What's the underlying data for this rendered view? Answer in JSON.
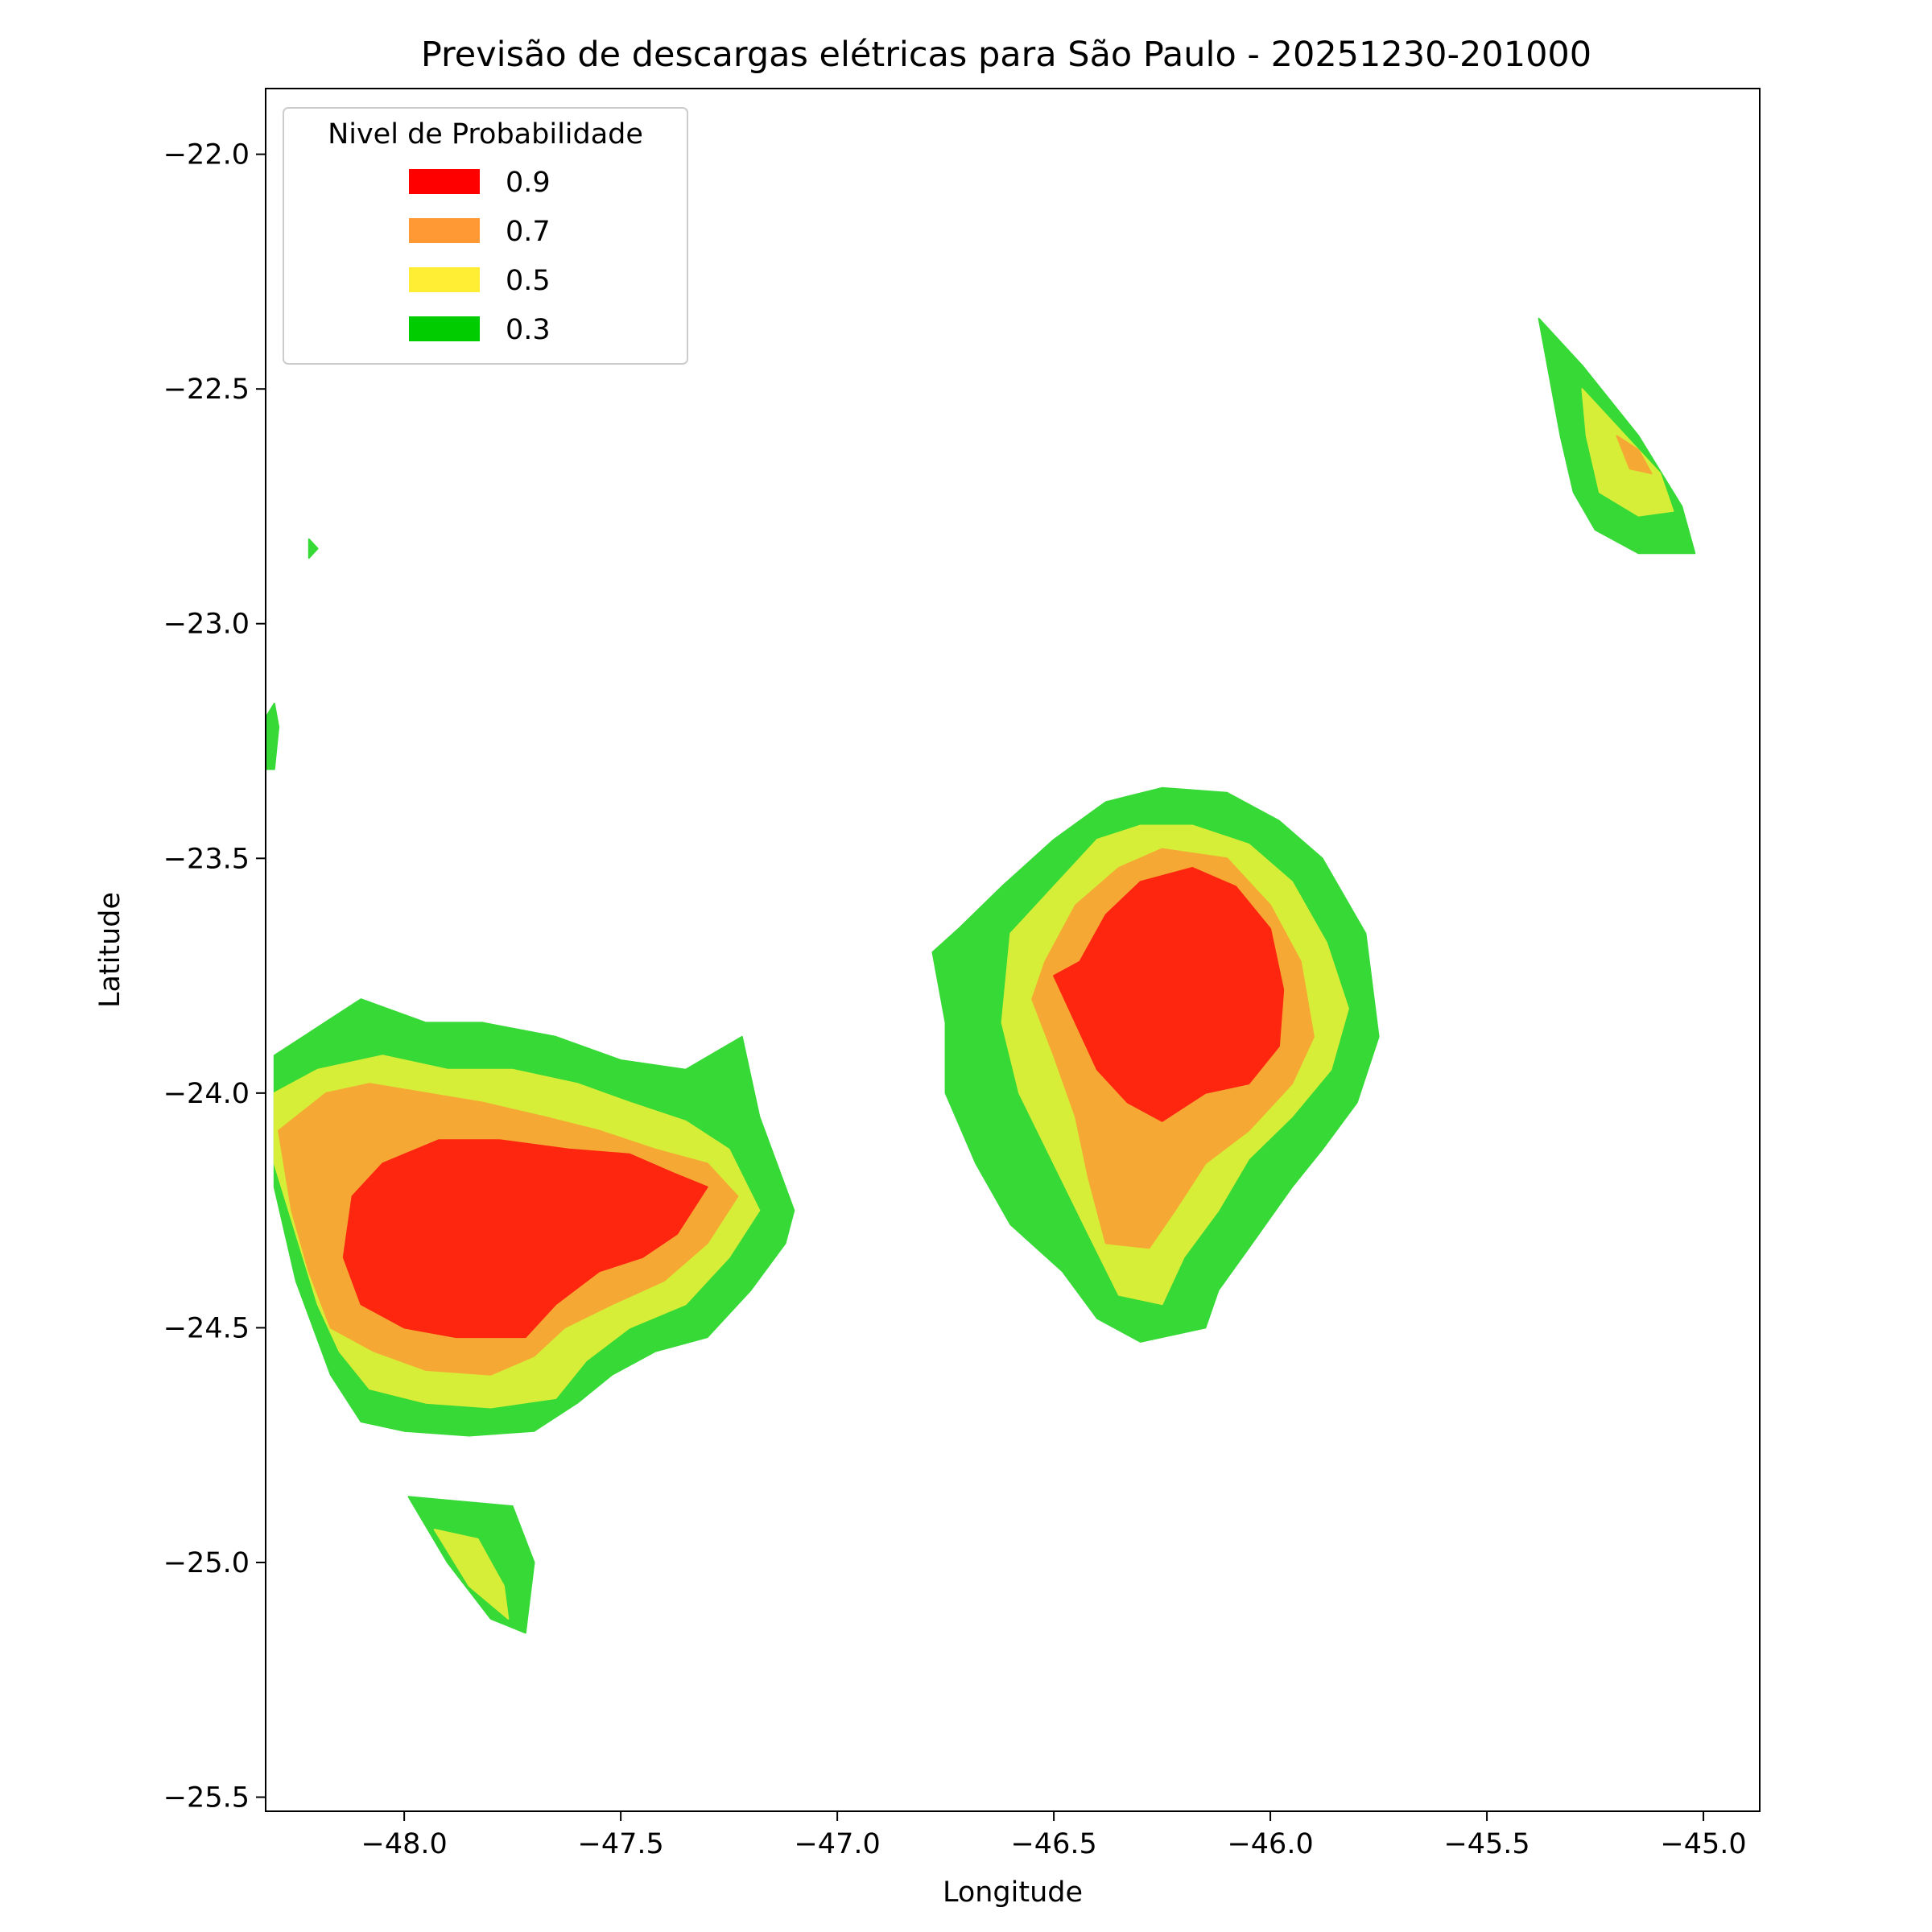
{
  "chart_data": {
    "type": "contourf",
    "title": "Previsão de descargas elétricas para São Paulo - 20251230-201000",
    "xlabel": "Longitude",
    "ylabel": "Latitude",
    "xlim": [
      -48.32,
      -44.87
    ],
    "ylim": [
      -25.53,
      -21.86
    ],
    "xticks": [
      {
        "value": -48.0,
        "label": "−48.0"
      },
      {
        "value": -47.5,
        "label": "−47.5"
      },
      {
        "value": -47.0,
        "label": "−47.0"
      },
      {
        "value": -46.5,
        "label": "−46.5"
      },
      {
        "value": -46.0,
        "label": "−46.0"
      },
      {
        "value": -45.5,
        "label": "−45.5"
      },
      {
        "value": -45.0,
        "label": "−45.0"
      }
    ],
    "yticks": [
      {
        "value": -22.0,
        "label": "−22.0"
      },
      {
        "value": -22.5,
        "label": "−22.5"
      },
      {
        "value": -23.0,
        "label": "−23.0"
      },
      {
        "value": -23.5,
        "label": "−23.5"
      },
      {
        "value": -24.0,
        "label": "−24.0"
      },
      {
        "value": -24.5,
        "label": "−24.5"
      },
      {
        "value": -25.0,
        "label": "−25.0"
      },
      {
        "value": -25.5,
        "label": "−25.5"
      }
    ],
    "grid": false,
    "legend": {
      "title": "Nivel de Probabilidade",
      "placement": "upper-left",
      "entries": [
        {
          "label": "0.9",
          "color": "#ff0000"
        },
        {
          "label": "0.7",
          "color": "#ff9933"
        },
        {
          "label": "0.5",
          "color": "#ffee33"
        },
        {
          "label": "0.3",
          "color": "#00cc00"
        }
      ]
    },
    "fill_colors": {
      "0.3": "#37d937",
      "0.5": "#d6ee38",
      "0.7": "#f6a834",
      "0.9": "#ff2610"
    },
    "regions": [
      {
        "name": "west-cell",
        "levels": [
          {
            "level": "0.3",
            "polygon": [
              [
                -48.3,
                -23.92
              ],
              [
                -48.2,
                -23.86
              ],
              [
                -48.1,
                -23.8
              ],
              [
                -47.95,
                -23.85
              ],
              [
                -47.82,
                -23.85
              ],
              [
                -47.65,
                -23.88
              ],
              [
                -47.5,
                -23.93
              ],
              [
                -47.35,
                -23.95
              ],
              [
                -47.22,
                -23.88
              ],
              [
                -47.18,
                -24.05
              ],
              [
                -47.1,
                -24.25
              ],
              [
                -47.12,
                -24.32
              ],
              [
                -47.2,
                -24.42
              ],
              [
                -47.3,
                -24.52
              ],
              [
                -47.42,
                -24.55
              ],
              [
                -47.52,
                -24.6
              ],
              [
                -47.6,
                -24.66
              ],
              [
                -47.7,
                -24.72
              ],
              [
                -47.85,
                -24.73
              ],
              [
                -48.0,
                -24.72
              ],
              [
                -48.1,
                -24.7
              ],
              [
                -48.17,
                -24.6
              ],
              [
                -48.25,
                -24.4
              ],
              [
                -48.3,
                -24.2
              ]
            ]
          },
          {
            "level": "0.5",
            "polygon": [
              [
                -48.3,
                -24.0
              ],
              [
                -48.2,
                -23.95
              ],
              [
                -48.05,
                -23.92
              ],
              [
                -47.9,
                -23.95
              ],
              [
                -47.75,
                -23.95
              ],
              [
                -47.6,
                -23.98
              ],
              [
                -47.48,
                -24.02
              ],
              [
                -47.35,
                -24.06
              ],
              [
                -47.25,
                -24.12
              ],
              [
                -47.18,
                -24.25
              ],
              [
                -47.25,
                -24.35
              ],
              [
                -47.35,
                -24.45
              ],
              [
                -47.48,
                -24.5
              ],
              [
                -47.58,
                -24.57
              ],
              [
                -47.65,
                -24.65
              ],
              [
                -47.8,
                -24.67
              ],
              [
                -47.95,
                -24.66
              ],
              [
                -48.08,
                -24.63
              ],
              [
                -48.15,
                -24.55
              ],
              [
                -48.2,
                -24.45
              ],
              [
                -48.25,
                -24.3
              ],
              [
                -48.3,
                -24.15
              ]
            ]
          },
          {
            "level": "0.7",
            "polygon": [
              [
                -48.29,
                -24.08
              ],
              [
                -48.18,
                -24.0
              ],
              [
                -48.08,
                -23.98
              ],
              [
                -47.95,
                -24.0
              ],
              [
                -47.82,
                -24.02
              ],
              [
                -47.68,
                -24.05
              ],
              [
                -47.55,
                -24.08
              ],
              [
                -47.42,
                -24.12
              ],
              [
                -47.3,
                -24.15
              ],
              [
                -47.23,
                -24.22
              ],
              [
                -47.3,
                -24.32
              ],
              [
                -47.4,
                -24.4
              ],
              [
                -47.52,
                -24.45
              ],
              [
                -47.63,
                -24.5
              ],
              [
                -47.7,
                -24.56
              ],
              [
                -47.8,
                -24.6
              ],
              [
                -47.95,
                -24.59
              ],
              [
                -48.07,
                -24.55
              ],
              [
                -48.17,
                -24.5
              ],
              [
                -48.22,
                -24.38
              ],
              [
                -48.26,
                -24.25
              ]
            ]
          },
          {
            "level": "0.9",
            "polygon": [
              [
                -48.12,
                -24.22
              ],
              [
                -48.05,
                -24.15
              ],
              [
                -47.92,
                -24.1
              ],
              [
                -47.78,
                -24.1
              ],
              [
                -47.62,
                -24.12
              ],
              [
                -47.48,
                -24.13
              ],
              [
                -47.38,
                -24.17
              ],
              [
                -47.3,
                -24.2
              ],
              [
                -47.37,
                -24.3
              ],
              [
                -47.45,
                -24.35
              ],
              [
                -47.55,
                -24.38
              ],
              [
                -47.65,
                -24.45
              ],
              [
                -47.72,
                -24.52
              ],
              [
                -47.88,
                -24.52
              ],
              [
                -48.0,
                -24.5
              ],
              [
                -48.1,
                -24.45
              ],
              [
                -48.14,
                -24.35
              ]
            ]
          }
        ]
      },
      {
        "name": "central-cell",
        "levels": [
          {
            "level": "0.3",
            "polygon": [
              [
                -46.72,
                -23.65
              ],
              [
                -46.62,
                -23.56
              ],
              [
                -46.5,
                -23.46
              ],
              [
                -46.38,
                -23.38
              ],
              [
                -46.25,
                -23.35
              ],
              [
                -46.1,
                -23.36
              ],
              [
                -45.98,
                -23.42
              ],
              [
                -45.88,
                -23.5
              ],
              [
                -45.78,
                -23.66
              ],
              [
                -45.75,
                -23.88
              ],
              [
                -45.8,
                -24.02
              ],
              [
                -45.88,
                -24.12
              ],
              [
                -45.95,
                -24.2
              ],
              [
                -46.05,
                -24.33
              ],
              [
                -46.12,
                -24.42
              ],
              [
                -46.15,
                -24.5
              ],
              [
                -46.3,
                -24.53
              ],
              [
                -46.4,
                -24.48
              ],
              [
                -46.48,
                -24.38
              ],
              [
                -46.6,
                -24.28
              ],
              [
                -46.68,
                -24.15
              ],
              [
                -46.75,
                -24.0
              ],
              [
                -46.75,
                -23.85
              ],
              [
                -46.78,
                -23.7
              ]
            ]
          },
          {
            "level": "0.5",
            "polygon": [
              [
                -46.6,
                -23.66
              ],
              [
                -46.5,
                -23.56
              ],
              [
                -46.4,
                -23.46
              ],
              [
                -46.3,
                -23.43
              ],
              [
                -46.18,
                -23.43
              ],
              [
                -46.05,
                -23.47
              ],
              [
                -45.95,
                -23.55
              ],
              [
                -45.87,
                -23.68
              ],
              [
                -45.82,
                -23.82
              ],
              [
                -45.86,
                -23.95
              ],
              [
                -45.95,
                -24.05
              ],
              [
                -46.05,
                -24.14
              ],
              [
                -46.12,
                -24.25
              ],
              [
                -46.2,
                -24.35
              ],
              [
                -46.25,
                -24.45
              ],
              [
                -46.35,
                -24.43
              ],
              [
                -46.42,
                -24.3
              ],
              [
                -46.5,
                -24.15
              ],
              [
                -46.58,
                -24.0
              ],
              [
                -46.62,
                -23.85
              ]
            ]
          },
          {
            "level": "0.7",
            "polygon": [
              [
                -46.52,
                -23.72
              ],
              [
                -46.45,
                -23.6
              ],
              [
                -46.35,
                -23.52
              ],
              [
                -46.25,
                -23.48
              ],
              [
                -46.1,
                -23.5
              ],
              [
                -46.0,
                -23.6
              ],
              [
                -45.93,
                -23.72
              ],
              [
                -45.9,
                -23.88
              ],
              [
                -45.95,
                -23.98
              ],
              [
                -46.05,
                -24.08
              ],
              [
                -46.15,
                -24.15
              ],
              [
                -46.22,
                -24.25
              ],
              [
                -46.28,
                -24.33
              ],
              [
                -46.38,
                -24.32
              ],
              [
                -46.42,
                -24.18
              ],
              [
                -46.45,
                -24.05
              ],
              [
                -46.5,
                -23.92
              ],
              [
                -46.55,
                -23.8
              ]
            ]
          },
          {
            "level": "0.9",
            "polygon": [
              [
                -46.44,
                -23.72
              ],
              [
                -46.38,
                -23.62
              ],
              [
                -46.3,
                -23.55
              ],
              [
                -46.18,
                -23.52
              ],
              [
                -46.08,
                -23.56
              ],
              [
                -46.0,
                -23.65
              ],
              [
                -45.97,
                -23.78
              ],
              [
                -45.98,
                -23.9
              ],
              [
                -46.05,
                -23.98
              ],
              [
                -46.15,
                -24.0
              ],
              [
                -46.25,
                -24.06
              ],
              [
                -46.33,
                -24.02
              ],
              [
                -46.4,
                -23.95
              ],
              [
                -46.45,
                -23.85
              ],
              [
                -46.5,
                -23.75
              ]
            ]
          }
        ]
      },
      {
        "name": "northeast-cell",
        "levels": [
          {
            "level": "0.3",
            "polygon": [
              [
                -45.38,
                -22.35
              ],
              [
                -45.28,
                -22.45
              ],
              [
                -45.15,
                -22.6
              ],
              [
                -45.05,
                -22.75
              ],
              [
                -45.02,
                -22.85
              ],
              [
                -45.15,
                -22.85
              ],
              [
                -45.25,
                -22.8
              ],
              [
                -45.3,
                -22.72
              ],
              [
                -45.33,
                -22.6
              ]
            ]
          },
          {
            "level": "0.5",
            "polygon": [
              [
                -45.28,
                -22.5
              ],
              [
                -45.2,
                -22.58
              ],
              [
                -45.1,
                -22.68
              ],
              [
                -45.07,
                -22.76
              ],
              [
                -45.15,
                -22.77
              ],
              [
                -45.24,
                -22.72
              ],
              [
                -45.27,
                -22.6
              ]
            ]
          },
          {
            "level": "0.7",
            "polygon": [
              [
                -45.2,
                -22.6
              ],
              [
                -45.15,
                -22.63
              ],
              [
                -45.12,
                -22.68
              ],
              [
                -45.17,
                -22.67
              ]
            ]
          }
        ]
      },
      {
        "name": "south-cell",
        "levels": [
          {
            "level": "0.3",
            "polygon": [
              [
                -47.99,
                -24.86
              ],
              [
                -47.75,
                -24.88
              ],
              [
                -47.7,
                -25.0
              ],
              [
                -47.72,
                -25.15
              ],
              [
                -47.8,
                -25.12
              ],
              [
                -47.9,
                -25.0
              ]
            ]
          },
          {
            "level": "0.5",
            "polygon": [
              [
                -47.93,
                -24.93
              ],
              [
                -47.83,
                -24.95
              ],
              [
                -47.77,
                -25.05
              ],
              [
                -47.76,
                -25.12
              ],
              [
                -47.85,
                -25.05
              ]
            ]
          }
        ]
      },
      {
        "name": "west-edge-fragments",
        "levels": [
          {
            "level": "0.3",
            "polygon": [
              [
                -48.22,
                -22.82
              ],
              [
                -48.22,
                -22.86
              ],
              [
                -48.2,
                -22.84
              ]
            ]
          },
          {
            "level": "0.3",
            "polygon": [
              [
                -48.3,
                -23.17
              ],
              [
                -48.29,
                -23.22
              ],
              [
                -48.3,
                -23.31
              ],
              [
                -48.32,
                -23.31
              ],
              [
                -48.32,
                -23.2
              ]
            ]
          }
        ]
      }
    ]
  }
}
